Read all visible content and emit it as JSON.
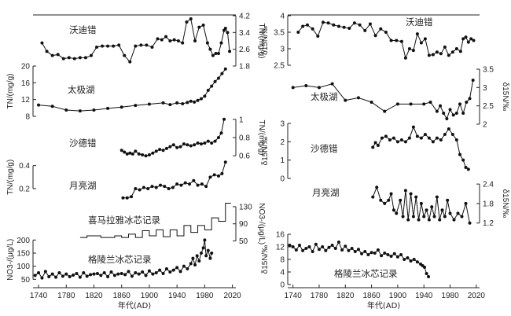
{
  "chart_data": [
    {
      "type": "line",
      "panel": "left",
      "xlabel": "年代(AD)",
      "x_ticks": [
        1740,
        1780,
        1820,
        1860,
        1900,
        1940,
        1980,
        2020
      ],
      "xlim": [
        1732,
        2025
      ],
      "series": [
        {
          "name": "沃迪错",
          "ylabel": "TN/(mg/g)",
          "y_side": "right",
          "y_ticks": [
            1.8,
            2.6,
            3.4,
            4.2
          ],
          "ylim": [
            1.8,
            4.2
          ],
          "x": [
            1745,
            1752,
            1760,
            1768,
            1776,
            1784,
            1792,
            1800,
            1808,
            1816,
            1824,
            1832,
            1840,
            1848,
            1856,
            1864,
            1872,
            1880,
            1888,
            1896,
            1904,
            1912,
            1918,
            1924,
            1930,
            1936,
            1942,
            1948,
            1954,
            1960,
            1966,
            1972,
            1978,
            1984,
            1988,
            1992,
            1996,
            2000,
            2004,
            2008,
            2010,
            2013,
            2016
          ],
          "values": [
            2.9,
            2.5,
            2.3,
            2.35,
            2.15,
            2.2,
            2.15,
            2.2,
            2.2,
            2.3,
            2.7,
            2.75,
            2.75,
            2.75,
            2.8,
            2.3,
            2.0,
            2.75,
            2.8,
            2.8,
            2.7,
            3.1,
            3.05,
            3.2,
            3.0,
            3.05,
            3.0,
            2.9,
            3.9,
            4.05,
            3.0,
            3.65,
            3.75,
            2.9,
            2.6,
            2.3,
            2.4,
            2.4,
            2.9,
            3.5,
            3.6,
            3.4,
            2.5
          ]
        },
        {
          "name": "太极湖",
          "ylabel": "TN/(mg/g)",
          "y_side": "left",
          "y_ticks": [
            8,
            12,
            16,
            20
          ],
          "ylim": [
            8,
            20
          ],
          "x": [
            1740,
            1760,
            1780,
            1800,
            1820,
            1840,
            1860,
            1880,
            1900,
            1920,
            1930,
            1940,
            1948,
            1955,
            1960,
            1965,
            1970,
            1975,
            1980,
            1985,
            1990,
            1995,
            2000,
            2005,
            2010
          ],
          "values": [
            10.7,
            10.4,
            9.5,
            9.3,
            9.5,
            9.9,
            10.2,
            10.6,
            10.9,
            11.2,
            10.8,
            11.2,
            11.0,
            11.3,
            11.6,
            11.4,
            11.8,
            12.2,
            12.8,
            14.2,
            15.2,
            16.3,
            17.1,
            18.2,
            19.3
          ]
        },
        {
          "name": "沙德错",
          "ylabel": "TN/(mg/g)",
          "y_side": "right",
          "y_ticks": [
            0.6,
            0.8,
            1.0
          ],
          "ylim": [
            0.55,
            1.05
          ],
          "x": [
            1860,
            1864,
            1868,
            1872,
            1876,
            1880,
            1885,
            1890,
            1895,
            1900,
            1905,
            1910,
            1915,
            1920,
            1925,
            1930,
            1935,
            1940,
            1945,
            1950,
            1955,
            1960,
            1965,
            1970,
            1975,
            1980,
            1985,
            1990,
            1995,
            2000,
            2004,
            2008
          ],
          "values": [
            0.66,
            0.64,
            0.62,
            0.63,
            0.62,
            0.65,
            0.62,
            0.61,
            0.6,
            0.61,
            0.63,
            0.65,
            0.67,
            0.66,
            0.68,
            0.7,
            0.72,
            0.69,
            0.7,
            0.73,
            0.72,
            0.71,
            0.72,
            0.74,
            0.73,
            0.74,
            0.76,
            0.74,
            0.76,
            0.8,
            0.85,
            1.0
          ]
        },
        {
          "name": "月亮湖",
          "ylabel": "TN/(mg/g)",
          "y_side": "left",
          "y_ticks": [
            0.2,
            0.4
          ],
          "ylim": [
            0.05,
            0.5
          ],
          "x": [
            1862,
            1868,
            1874,
            1880,
            1886,
            1892,
            1898,
            1904,
            1910,
            1916,
            1922,
            1928,
            1934,
            1940,
            1946,
            1952,
            1958,
            1964,
            1970,
            1976,
            1982,
            1988,
            1994,
            2000,
            2005,
            2010
          ],
          "values": [
            0.12,
            0.12,
            0.13,
            0.2,
            0.19,
            0.21,
            0.2,
            0.22,
            0.21,
            0.23,
            0.22,
            0.2,
            0.21,
            0.24,
            0.23,
            0.25,
            0.24,
            0.27,
            0.23,
            0.24,
            0.22,
            0.3,
            0.32,
            0.31,
            0.33,
            0.43
          ]
        },
        {
          "name": "喜马拉雅冰芯记录",
          "ylabel": "NO3-/(μg/L)",
          "y_side": "right",
          "y_ticks": [
            50,
            90,
            130
          ],
          "ylim": [
            40,
            150
          ],
          "step": true,
          "x": [
            1800,
            1810,
            1830,
            1850,
            1860,
            1870,
            1880,
            1890,
            1900,
            1910,
            1920,
            1930,
            1940,
            1950,
            1960,
            1970,
            1980,
            1990,
            2000,
            2010
          ],
          "values": [
            58,
            62,
            58,
            62,
            58,
            66,
            58,
            74,
            62,
            76,
            60,
            76,
            62,
            86,
            70,
            86,
            76,
            104,
            96,
            138
          ]
        },
        {
          "name": "格陵兰冰芯记录",
          "ylabel": "NO3-/(μg/L)",
          "y_side": "left",
          "y_ticks": [
            50,
            100,
            150,
            200
          ],
          "ylim": [
            30,
            210
          ],
          "x": [
            1735,
            1740,
            1745,
            1750,
            1755,
            1760,
            1765,
            1770,
            1775,
            1780,
            1785,
            1790,
            1795,
            1800,
            1805,
            1810,
            1815,
            1820,
            1825,
            1830,
            1835,
            1840,
            1845,
            1850,
            1855,
            1860,
            1865,
            1870,
            1875,
            1880,
            1885,
            1890,
            1895,
            1900,
            1905,
            1910,
            1915,
            1920,
            1925,
            1930,
            1935,
            1940,
            1945,
            1950,
            1955,
            1960,
            1963,
            1966,
            1969,
            1972,
            1975,
            1978,
            1980,
            1982,
            1985,
            1988,
            1990
          ],
          "values": [
            65,
            75,
            55,
            80,
            60,
            70,
            58,
            75,
            62,
            70,
            60,
            66,
            72,
            58,
            75,
            62,
            68,
            70,
            72,
            65,
            75,
            60,
            78,
            65,
            70,
            72,
            68,
            80,
            62,
            75,
            70,
            78,
            65,
            82,
            70,
            75,
            85,
            72,
            90,
            78,
            85,
            95,
            80,
            100,
            90,
            110,
            130,
            105,
            140,
            120,
            150,
            170,
            200,
            140,
            160,
            130,
            150
          ]
        }
      ]
    },
    {
      "type": "line",
      "panel": "right",
      "xlabel": "年代(AD)",
      "x_ticks": [
        1740,
        1780,
        1820,
        1860,
        1900,
        1940,
        1980,
        2020
      ],
      "xlim": [
        1732,
        2025
      ],
      "series": [
        {
          "name": "沃迪错",
          "ylabel": "δ15N/‰",
          "y_side": "left",
          "y_ticks": [
            2.5,
            3.0,
            3.5,
            4.0
          ],
          "ylim": [
            2.5,
            4.0
          ],
          "x": [
            1748,
            1755,
            1762,
            1770,
            1778,
            1786,
            1794,
            1802,
            1810,
            1818,
            1826,
            1834,
            1842,
            1850,
            1858,
            1866,
            1874,
            1882,
            1890,
            1898,
            1906,
            1912,
            1918,
            1924,
            1930,
            1936,
            1942,
            1948,
            1954,
            1960,
            1966,
            1972,
            1978,
            1984,
            1990,
            1996,
            2000,
            2004,
            2008,
            2012,
            2016
          ],
          "values": [
            3.5,
            3.68,
            3.72,
            3.6,
            3.38,
            3.8,
            3.78,
            3.72,
            3.68,
            3.65,
            3.62,
            3.78,
            3.72,
            3.55,
            3.75,
            3.4,
            3.6,
            3.5,
            3.25,
            3.25,
            3.22,
            2.72,
            3.0,
            2.95,
            3.45,
            3.18,
            3.3,
            2.8,
            2.82,
            2.9,
            2.85,
            3.05,
            2.8,
            2.9,
            3.0,
            2.92,
            3.3,
            3.35,
            3.2,
            3.3,
            3.25
          ]
        },
        {
          "name": "太极湖",
          "ylabel": "δ15N/‰",
          "y_side": "right",
          "y_ticks": [
            2.0,
            2.5,
            3.0,
            3.5
          ],
          "ylim": [
            2.0,
            3.5
          ],
          "x": [
            1740,
            1760,
            1780,
            1800,
            1820,
            1840,
            1860,
            1880,
            1900,
            1920,
            1940,
            1950,
            1960,
            1965,
            1970,
            1975,
            1980,
            1985,
            1990,
            1995,
            2000,
            2005,
            2010,
            2015
          ],
          "values": [
            3.0,
            3.05,
            3.0,
            3.1,
            2.65,
            2.72,
            2.6,
            2.35,
            2.55,
            2.55,
            2.55,
            2.6,
            2.35,
            2.5,
            2.3,
            2.15,
            2.4,
            2.25,
            2.3,
            2.55,
            2.3,
            2.6,
            2.7,
            3.2
          ]
        },
        {
          "name": "沙德错",
          "ylabel": "δ15N/‰",
          "y_side": "left",
          "y_ticks": [
            0,
            1,
            2,
            3
          ],
          "ylim": [
            0,
            3
          ],
          "x": [
            1862,
            1866,
            1870,
            1876,
            1882,
            1888,
            1894,
            1900,
            1906,
            1912,
            1918,
            1924,
            1930,
            1936,
            1942,
            1948,
            1954,
            1960,
            1966,
            1972,
            1978,
            1984,
            1990,
            1995,
            2000,
            2004,
            2008
          ],
          "values": [
            1.7,
            1.95,
            1.8,
            2.2,
            2.3,
            2.1,
            2.2,
            2.0,
            2.1,
            2.0,
            2.2,
            2.8,
            2.3,
            2.2,
            2.4,
            2.2,
            2.0,
            2.2,
            2.1,
            2.4,
            2.7,
            2.4,
            2.1,
            1.3,
            1.0,
            0.6,
            0.5
          ]
        },
        {
          "name": "月亮湖",
          "ylabel": "δ15N/‰",
          "y_side": "right",
          "y_ticks": [
            1.2,
            1.8,
            2.4
          ],
          "ylim": [
            1.0,
            2.5
          ],
          "x": [
            1862,
            1868,
            1874,
            1880,
            1886,
            1890,
            1894,
            1898,
            1904,
            1908,
            1912,
            1916,
            1920,
            1924,
            1928,
            1932,
            1936,
            1940,
            1944,
            1948,
            1952,
            1956,
            1960,
            1964,
            1968,
            1972,
            1976,
            1980,
            1986,
            1992,
            1998,
            2004,
            2010
          ],
          "values": [
            2.0,
            2.3,
            1.9,
            1.8,
            1.9,
            2.1,
            1.6,
            1.5,
            1.9,
            1.4,
            2.2,
            1.3,
            2.1,
            1.4,
            2.0,
            1.3,
            1.8,
            1.4,
            1.6,
            1.3,
            1.7,
            1.4,
            2.0,
            1.3,
            1.6,
            1.4,
            1.9,
            1.5,
            1.3,
            1.5,
            1.4,
            1.8,
            1.2
          ]
        },
        {
          "name": "格陵兰冰芯记录",
          "ylabel": "δ15N/‰",
          "y_side": "left",
          "y_ticks": [
            0,
            4,
            8,
            12,
            16
          ],
          "ylim": [
            0,
            16
          ],
          "x": [
            1735,
            1740,
            1745,
            1750,
            1755,
            1760,
            1765,
            1770,
            1775,
            1780,
            1785,
            1790,
            1795,
            1800,
            1805,
            1810,
            1815,
            1820,
            1825,
            1830,
            1835,
            1840,
            1845,
            1850,
            1855,
            1860,
            1865,
            1870,
            1875,
            1880,
            1885,
            1890,
            1895,
            1900,
            1905,
            1910,
            1915,
            1920,
            1925,
            1930,
            1935,
            1938,
            1941,
            1944,
            1947
          ],
          "values": [
            12.5,
            12.0,
            11.0,
            12.5,
            10.8,
            11.5,
            12.0,
            10.5,
            12.8,
            11.2,
            12.0,
            10.8,
            11.8,
            12.5,
            11.5,
            13.5,
            11.0,
            12.2,
            10.8,
            11.5,
            10.5,
            11.2,
            9.8,
            10.5,
            9.5,
            10.2,
            10.0,
            11.0,
            9.2,
            10.0,
            9.5,
            9.0,
            9.8,
            8.8,
            9.5,
            8.0,
            8.5,
            7.5,
            8.0,
            7.2,
            6.5,
            6.0,
            5.5,
            3.5,
            2.5
          ]
        }
      ]
    }
  ]
}
